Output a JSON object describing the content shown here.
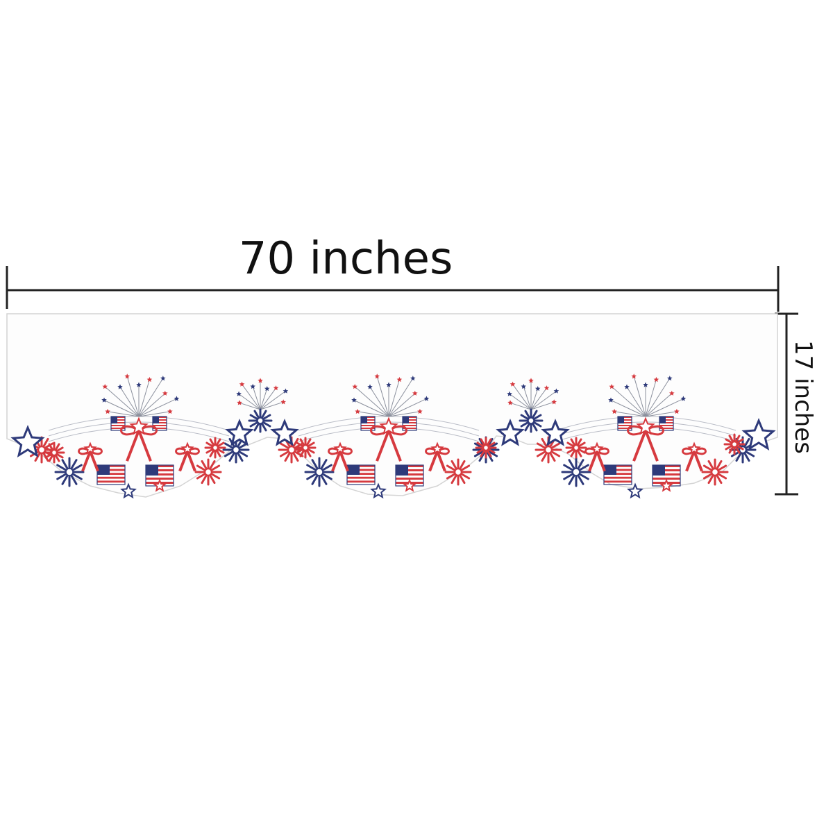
{
  "dimensions": {
    "width_label": "70 inches",
    "height_label": "17 inches"
  },
  "product": {
    "fabric_color": "#fdfdfd",
    "outline_color": "#d4d4d4",
    "motif": "patriotic embroidered valance with stars, ribbons, flags and fireworks",
    "palette": {
      "red": "#d63a3f",
      "navy": "#2e3a7a",
      "white": "#ffffff",
      "grey_thread": "#8a8f9c"
    }
  }
}
